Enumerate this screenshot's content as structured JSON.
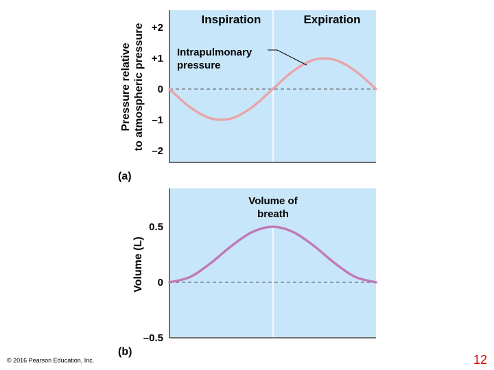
{
  "chart_data": [
    {
      "type": "line",
      "panel_label": "(a)",
      "ylabel_line1": "Pressure relative",
      "ylabel_line2": "to atmospheric pressure",
      "yticks": [
        "+2",
        "+1",
        "0",
        "–1",
        "–2"
      ],
      "ytick_values": [
        2,
        1,
        0,
        -1,
        -2
      ],
      "ylim": [
        -2.2,
        2.2
      ],
      "x": [
        0,
        0.1,
        0.2,
        0.3,
        0.4,
        0.5,
        0.6,
        0.7,
        0.8,
        0.9,
        1.0
      ],
      "phases": [
        "Inspiration",
        "Expiration"
      ],
      "annotation_line1": "Intrapulmonary",
      "annotation_line2": "pressure",
      "series": [
        {
          "name": "Intrapulmonary pressure",
          "values": [
            0,
            -0.59,
            -0.95,
            -0.95,
            -0.59,
            0,
            0.59,
            0.95,
            0.95,
            0.59,
            0
          ]
        }
      ],
      "grid": "dashed zero line; vertical divider between inspiration and expiration",
      "colors": {
        "background": "#c8e6fa",
        "line": "#e8a6a9",
        "axis": "#6d6d6d"
      }
    },
    {
      "type": "line",
      "panel_label": "(b)",
      "ylabel": "Volume (L)",
      "yticks": [
        "0.5",
        "0",
        "–0.5"
      ],
      "ytick_values": [
        0.5,
        0,
        -0.5
      ],
      "ylim": [
        -0.5,
        0.8
      ],
      "x": [
        0,
        0.1,
        0.2,
        0.3,
        0.4,
        0.5,
        0.6,
        0.7,
        0.8,
        0.9,
        1.0
      ],
      "annotation_line1": "Volume of",
      "annotation_line2": "breath",
      "series": [
        {
          "name": "Volume of breath",
          "values": [
            0,
            0.048,
            0.173,
            0.327,
            0.452,
            0.5,
            0.452,
            0.327,
            0.173,
            0.048,
            0
          ]
        }
      ],
      "grid": "dashed zero line; vertical divider between inspiration and expiration",
      "colors": {
        "background": "#c8e6fa",
        "line": "#c07ab8",
        "axis": "#6d6d6d"
      }
    }
  ],
  "footer": {
    "copyright": "© 2016 Pearson Education, Inc.",
    "page_number": "12"
  }
}
